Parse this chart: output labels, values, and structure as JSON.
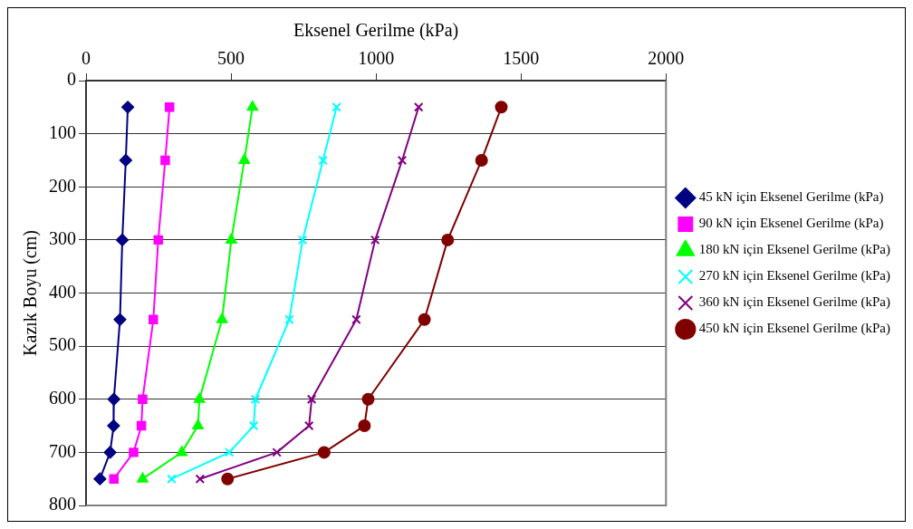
{
  "chart_data": {
    "type": "line",
    "xlabel": "Eksenel Gerilme (kPa)",
    "ylabel": "Kazık Boyu (cm)",
    "xlim": [
      0,
      2000
    ],
    "xticks": [
      0,
      500,
      1000,
      1500,
      2000
    ],
    "ylim": [
      800,
      0
    ],
    "yticks": [
      0,
      100,
      200,
      300,
      400,
      500,
      600,
      700,
      800
    ],
    "grid": "y",
    "legend": "right",
    "series": [
      {
        "name": "45 kN için Eksenel Gerilme (kPa)",
        "color": "#000080",
        "marker": "diamond",
        "x": [
          144,
          137,
          125,
          117,
          96,
          95,
          83,
          48
        ],
        "values": [
          50,
          150,
          300,
          450,
          600,
          650,
          700,
          750
        ]
      },
      {
        "name": "90 kN için Eksenel Gerilme (kPa)",
        "color": "#ff00ff",
        "marker": "square",
        "x": [
          288,
          273,
          249,
          232,
          195,
          191,
          164,
          96
        ],
        "values": [
          50,
          150,
          300,
          450,
          600,
          650,
          700,
          750
        ]
      },
      {
        "name": "180 kN için Eksenel Gerilme (kPa)",
        "color": "#00ff00",
        "marker": "triangle",
        "x": [
          574,
          546,
          501,
          469,
          391,
          386,
          330,
          195
        ],
        "values": [
          50,
          150,
          300,
          450,
          600,
          650,
          700,
          750
        ]
      },
      {
        "name": "270 kN için Eksenel Gerilme (kPa)",
        "color": "#00ffff",
        "marker": "cross",
        "x": [
          864,
          817,
          747,
          701,
          584,
          578,
          494,
          295
        ],
        "values": [
          50,
          150,
          300,
          450,
          600,
          650,
          700,
          750
        ]
      },
      {
        "name": "360 kN için Eksenel Gerilme (kPa)",
        "color": "#800080",
        "marker": "cross",
        "x": [
          1147,
          1090,
          997,
          932,
          778,
          769,
          658,
          393
        ],
        "values": [
          50,
          150,
          300,
          450,
          600,
          650,
          700,
          750
        ]
      },
      {
        "name": "450 kN için Eksenel Gerilme (kPa)",
        "color": "#800000",
        "marker": "circle",
        "x": [
          1432,
          1364,
          1247,
          1167,
          973,
          960,
          821,
          488
        ],
        "values": [
          50,
          150,
          300,
          450,
          600,
          650,
          700,
          750
        ]
      }
    ]
  }
}
